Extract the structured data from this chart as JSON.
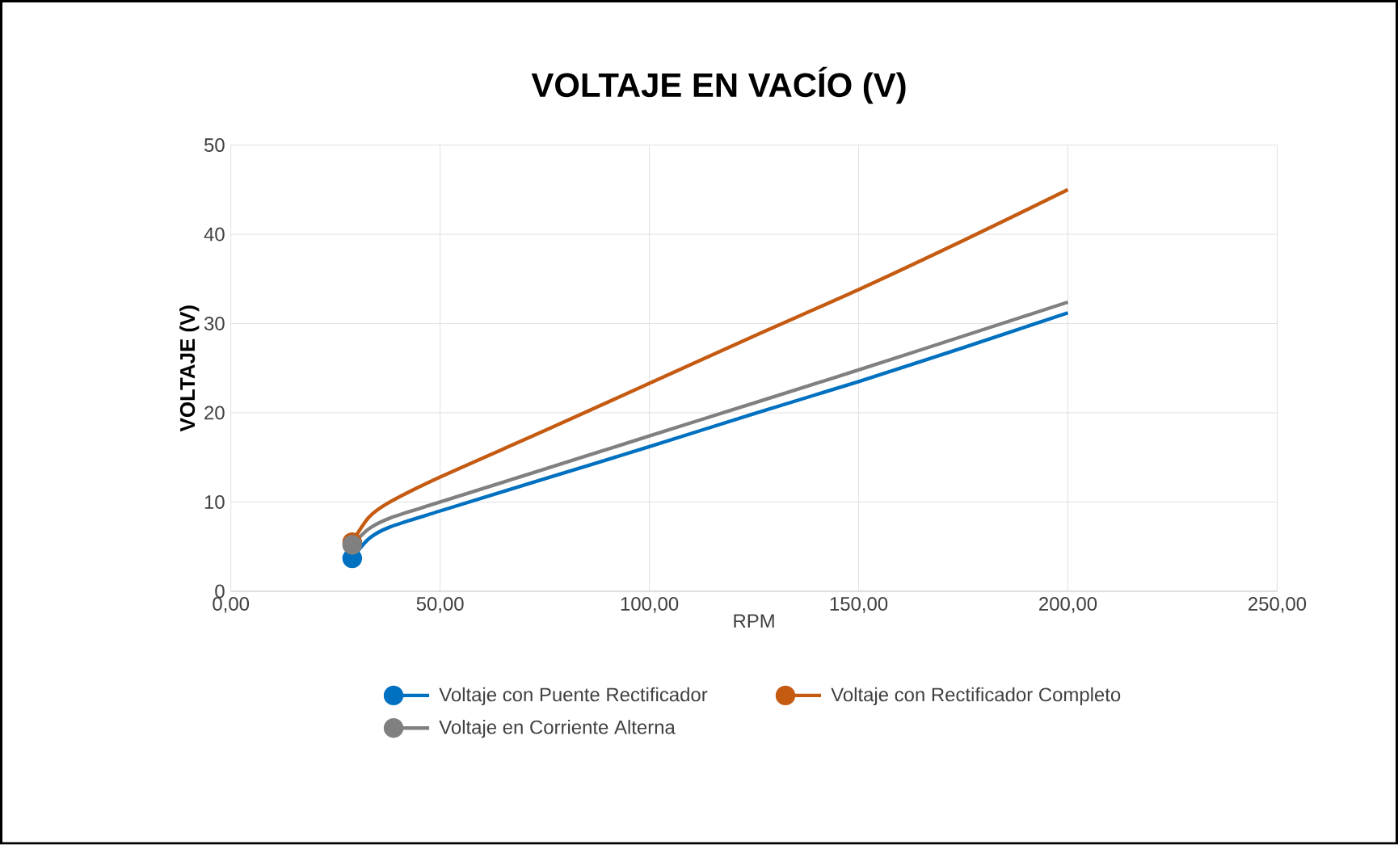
{
  "chart_data": {
    "type": "line",
    "title": "VOLTAJE EN VACÍO (V)",
    "xlabel": "RPM",
    "ylabel": "VOLTAJE (V)",
    "xlim": [
      0,
      250
    ],
    "xticks": [
      {
        "value": 0,
        "label": "0,00"
      },
      {
        "value": 50,
        "label": "50,00"
      },
      {
        "value": 100,
        "label": "100,00"
      },
      {
        "value": 150,
        "label": "150,00"
      },
      {
        "value": 200,
        "label": "200,00"
      },
      {
        "value": 250,
        "label": "250,00"
      }
    ],
    "ylim": [
      0,
      50
    ],
    "yticks": [
      0,
      10,
      20,
      30,
      40,
      50
    ],
    "grid": true,
    "legend": "bottom",
    "x": [
      29,
      33,
      38,
      50,
      75,
      100,
      125,
      150,
      175,
      200
    ],
    "series": [
      {
        "name": "Voltaje con Puente Rectificador",
        "color": "#0070c0",
        "values": [
          3.7,
          5.9,
          7.2,
          9.0,
          12.6,
          16.2,
          19.9,
          23.5,
          27.3,
          31.2
        ]
      },
      {
        "name": "Voltaje con Rectificador Completo",
        "color": "#c55a11",
        "values": [
          5.5,
          8.3,
          10.0,
          12.8,
          18.0,
          23.3,
          28.6,
          33.8,
          39.3,
          45.0
        ]
      },
      {
        "name": "Voltaje en Corriente Alterna",
        "color": "#808080",
        "values": [
          5.2,
          7.0,
          8.2,
          10.0,
          13.7,
          17.4,
          21.1,
          24.8,
          28.6,
          32.4
        ]
      }
    ]
  }
}
